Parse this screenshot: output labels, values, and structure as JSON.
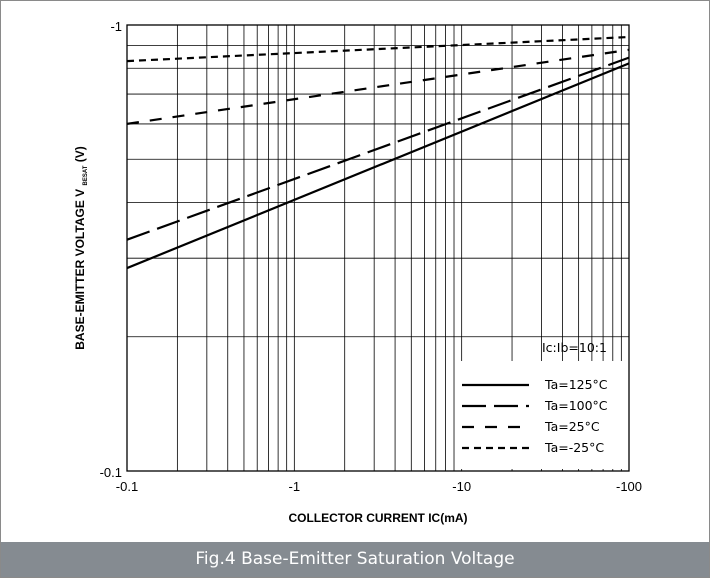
{
  "chart_data": {
    "type": "line",
    "xscale": "log",
    "yscale": "log",
    "xlabel": "COLLECTOR CURRENT  IC(mA)",
    "ylabel_main": "BASE-EMITTER VOLTAGE  V",
    "ylabel_sub": "BESAT",
    "ylabel_unit": "(V)",
    "xlim": [
      -0.1,
      -100
    ],
    "ylim": [
      -0.1,
      -1
    ],
    "x_ticks": [
      "-0.1",
      "-1",
      "-10",
      "-100"
    ],
    "y_ticks": [
      "-1",
      "-0.1"
    ],
    "condition": "Ic:Ib=10:1",
    "grid": true,
    "legend_position": "bottom-right",
    "series": [
      {
        "name": "Ta=125°C",
        "dash": "solid",
        "x": [
          -0.1,
          -100
        ],
        "y": [
          -0.285,
          -0.82
        ]
      },
      {
        "name": "Ta=100°C",
        "dash": "long-dash",
        "x": [
          -0.1,
          -100
        ],
        "y": [
          -0.33,
          -0.845
        ]
      },
      {
        "name": "Ta=25°C",
        "dash": "dash",
        "x": [
          -0.1,
          -100
        ],
        "y": [
          -0.6,
          -0.88
        ]
      },
      {
        "name": "Ta=-25°C",
        "dash": "short-dash",
        "x": [
          -0.1,
          -100
        ],
        "y": [
          -0.83,
          -0.94
        ]
      }
    ]
  },
  "caption": "Fig.4  Base-Emitter Saturation Voltage"
}
